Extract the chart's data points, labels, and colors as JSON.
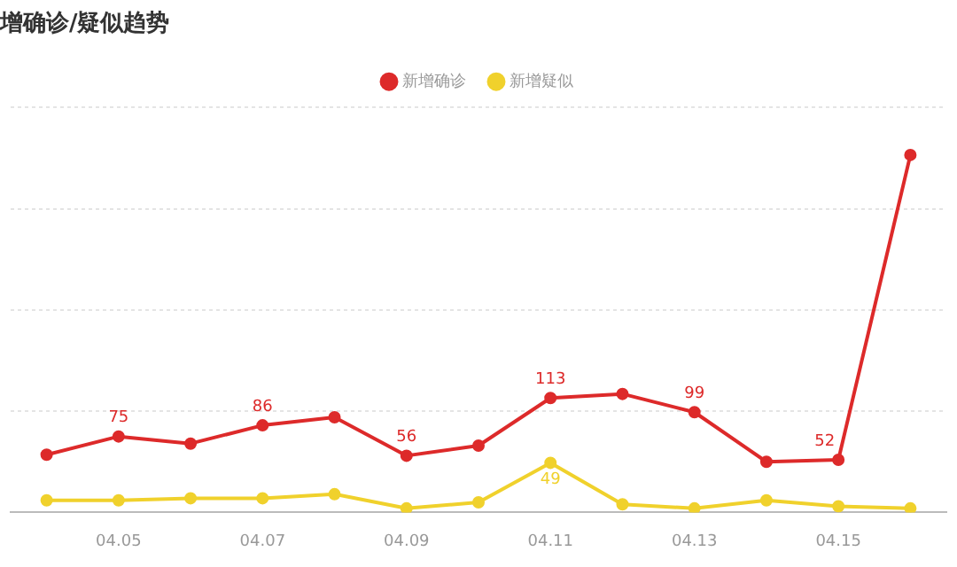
{
  "chart_data": {
    "type": "line",
    "title": "增确诊/疑似趋势",
    "categories": [
      null,
      "04.05",
      null,
      "04.07",
      null,
      "04.09",
      null,
      "04.11",
      null,
      "04.13",
      null,
      "04.15",
      null
    ],
    "series": [
      {
        "name": "新增确诊",
        "color": "#dd2a2a",
        "values": [
          57,
          75,
          68,
          86,
          94,
          56,
          66,
          113,
          117,
          99,
          50,
          52,
          353
        ],
        "value_labels": [
          null,
          "75",
          null,
          "86",
          null,
          "56",
          null,
          "113",
          null,
          "99",
          null,
          "52",
          null
        ]
      },
      {
        "name": "新增疑似",
        "color": "#f0d12c",
        "values": [
          12,
          12,
          14,
          14,
          18,
          4,
          10,
          49,
          8,
          4,
          12,
          6,
          4
        ],
        "value_labels": [
          null,
          null,
          null,
          null,
          null,
          null,
          null,
          "49",
          null,
          null,
          null,
          null,
          null
        ]
      }
    ],
    "ylim": [
      0,
      400
    ],
    "yticks": [
      {
        "value": 0,
        "label": null
      },
      {
        "value": 100,
        "label": null
      },
      {
        "value": 200,
        "label": null
      },
      {
        "value": 300,
        "label": null
      },
      {
        "value": 400,
        "label": null
      }
    ],
    "tick_labels": "x",
    "grid": "y",
    "legend": "top",
    "marker": "circle",
    "line_style": "solid"
  }
}
